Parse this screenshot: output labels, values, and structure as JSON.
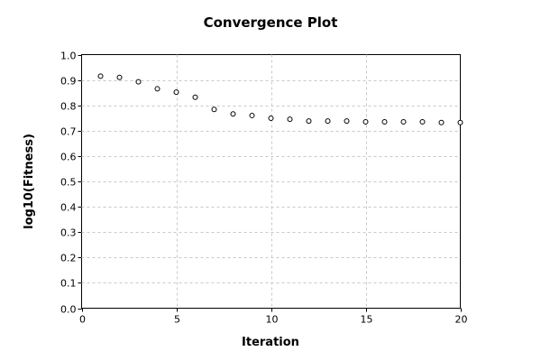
{
  "chart_data": {
    "type": "scatter",
    "title": "Convergence Plot",
    "xlabel": "Iteration",
    "ylabel": "log10(Fitness)",
    "xlim": [
      0,
      20
    ],
    "ylim": [
      0,
      1.0
    ],
    "xticks": [
      "0",
      "5",
      "10",
      "15",
      "20"
    ],
    "yticks": [
      "0.0",
      "0.1",
      "0.2",
      "0.3",
      "0.4",
      "0.5",
      "0.6",
      "0.7",
      "0.8",
      "0.9",
      "1.0"
    ],
    "grid": true,
    "marker": "open-circle",
    "series": [
      {
        "x": [
          1,
          2,
          3,
          4,
          5,
          6,
          7,
          8,
          9,
          10,
          11,
          12,
          13,
          14,
          15,
          16,
          17,
          18,
          19,
          20
        ],
        "y": [
          0.915,
          0.91,
          0.893,
          0.865,
          0.852,
          0.832,
          0.784,
          0.766,
          0.76,
          0.749,
          0.745,
          0.738,
          0.738,
          0.738,
          0.735,
          0.735,
          0.735,
          0.735,
          0.732,
          0.732
        ]
      }
    ]
  }
}
